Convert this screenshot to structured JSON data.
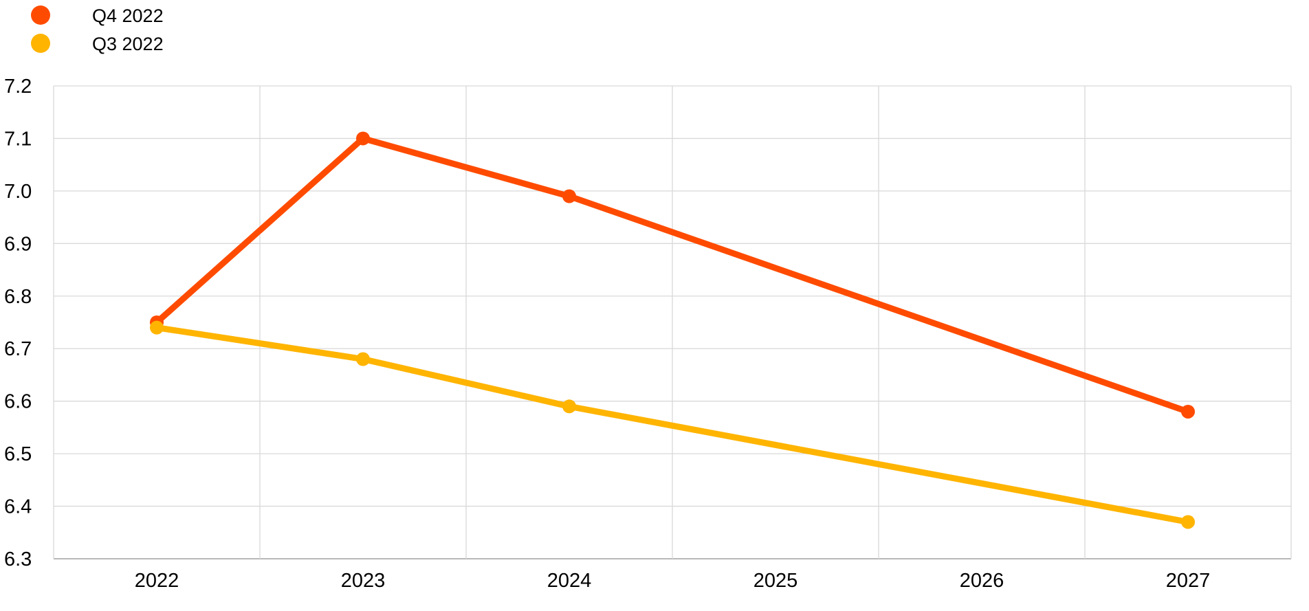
{
  "chart_data": {
    "type": "line",
    "title": "",
    "xlabel": "",
    "ylabel": "",
    "categories": [
      "2022",
      "2023",
      "2024",
      "2025",
      "2026",
      "2027"
    ],
    "ylim": [
      6.3,
      7.2
    ],
    "yticks": [
      "6.3",
      "6.4",
      "6.5",
      "6.6",
      "6.7",
      "6.8",
      "6.9",
      "7.0",
      "7.1",
      "7.2"
    ],
    "grid": true,
    "legend_position": "top-left",
    "series": [
      {
        "name": "Q4 2022",
        "color": "#ff4b00",
        "values": [
          6.75,
          7.1,
          6.99,
          null,
          null,
          6.58
        ]
      },
      {
        "name": "Q3 2022",
        "color": "#ffb400",
        "values": [
          6.74,
          6.68,
          6.59,
          null,
          null,
          6.37
        ]
      }
    ]
  }
}
